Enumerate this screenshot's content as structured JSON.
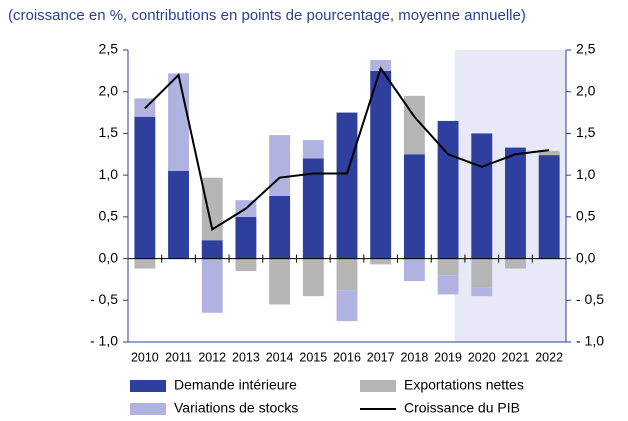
{
  "chart_data": {
    "type": "bar",
    "title": "(croissance en %, contributions en points de pourcentage, moyenne annuelle)",
    "categories": [
      "2010",
      "2011",
      "2012",
      "2013",
      "2014",
      "2015",
      "2016",
      "2017",
      "2018",
      "2019",
      "2020",
      "2021",
      "2022"
    ],
    "series": [
      {
        "name": "Demande intérieure",
        "color": "#2e3f9e",
        "values": [
          1.7,
          1.05,
          0.22,
          0.5,
          0.75,
          1.2,
          1.75,
          2.25,
          1.25,
          1.65,
          1.5,
          1.33,
          1.24
        ]
      },
      {
        "name": "Exportations nettes",
        "color": "#b5b5b5",
        "values": [
          -0.12,
          0,
          0.75,
          -0.15,
          -0.55,
          -0.45,
          -0.38,
          -0.07,
          0.7,
          -0.2,
          -0.35,
          -0.12,
          0.05
        ]
      },
      {
        "name": "Variations de stocks",
        "color": "#b0b3e0",
        "values": [
          0.22,
          1.17,
          -0.65,
          0.2,
          0.73,
          0.22,
          -0.37,
          0.13,
          -0.27,
          -0.23,
          -0.1,
          0,
          0
        ]
      },
      {
        "name": "Croissance du PIB",
        "type": "line",
        "color": "#000000",
        "values": [
          1.8,
          2.2,
          0.35,
          0.6,
          0.97,
          1.02,
          1.02,
          2.28,
          1.7,
          1.25,
          1.1,
          1.25,
          1.3
        ]
      }
    ],
    "ylim": [
      -1.0,
      2.5
    ],
    "yticks": [
      {
        "value": 2.5,
        "label": "2,5"
      },
      {
        "value": 2.0,
        "label": "2,0"
      },
      {
        "value": 1.5,
        "label": "1,5"
      },
      {
        "value": 1.0,
        "label": "1,0"
      },
      {
        "value": 0.5,
        "label": "0,5"
      },
      {
        "value": 0.0,
        "label": "0,0"
      },
      {
        "value": -0.5,
        "label": "- 0,5"
      },
      {
        "value": -1.0,
        "label": "- 1,0"
      }
    ]
  }
}
